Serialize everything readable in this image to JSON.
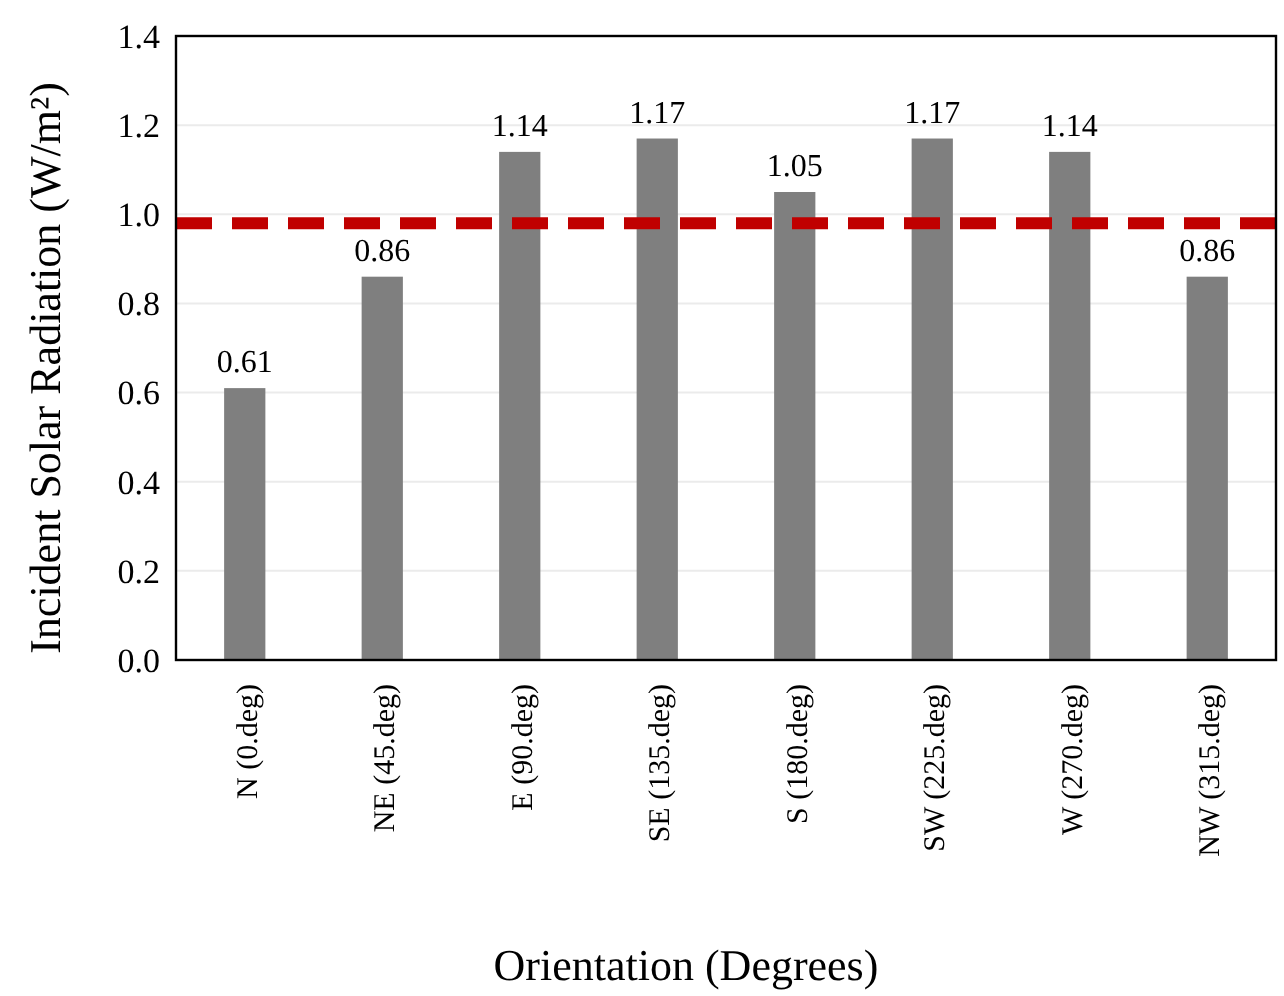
{
  "chart_data": {
    "type": "bar",
    "xlabel": "Orientation (Degrees)",
    "ylabel": "Incident Solar Radiation (W/m²)",
    "categories": [
      "N (0.deg)",
      "NE (45.deg)",
      "E (90.deg)",
      "SE (135.deg)",
      "S (180.deg)",
      "SW (225.deg)",
      "W (270.deg)",
      "NW (315.deg)"
    ],
    "values": [
      0.61,
      0.86,
      1.14,
      1.17,
      1.05,
      1.17,
      1.14,
      0.86
    ],
    "color": "#7f7f7f",
    "data_labels": true,
    "ylim": [
      0,
      1.4
    ],
    "yticks": [
      {
        "value": 0,
        "label": "0.0"
      },
      {
        "value": 0.2,
        "label": "0.2"
      },
      {
        "value": 0.4,
        "label": "0.4"
      },
      {
        "value": 0.6,
        "label": "0.6"
      },
      {
        "value": 0.8,
        "label": "0.8"
      },
      {
        "value": 1,
        "label": "1.0"
      },
      {
        "value": 1.2,
        "label": "1.2"
      },
      {
        "value": 1.4,
        "label": "1.4"
      }
    ],
    "grid": "y",
    "ref_lines": [
      {
        "axis": "y",
        "value": 0.98,
        "color": "#c00000",
        "line_style": "dashed"
      }
    ]
  }
}
